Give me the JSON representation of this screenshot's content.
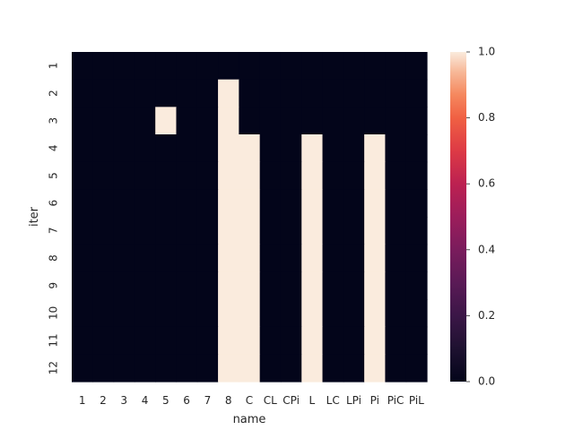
{
  "chart_data": {
    "type": "heatmap",
    "title": "",
    "xlabel": "name",
    "ylabel": "iter",
    "x_categories": [
      "1",
      "2",
      "3",
      "4",
      "5",
      "6",
      "7",
      "8",
      "C",
      "CL",
      "CPi",
      "L",
      "LC",
      "LPi",
      "Pi",
      "PiC",
      "PiL"
    ],
    "y_categories": [
      "1",
      "2",
      "3",
      "4",
      "5",
      "6",
      "7",
      "8",
      "9",
      "10",
      "11",
      "12"
    ],
    "values": [
      [
        0,
        0,
        0,
        0,
        0,
        0,
        0,
        0,
        0,
        0,
        0,
        0,
        0,
        0,
        0,
        0,
        0
      ],
      [
        0,
        0,
        0,
        0,
        0,
        0,
        0,
        1,
        0,
        0,
        0,
        0,
        0,
        0,
        0,
        0,
        0
      ],
      [
        0,
        0,
        0,
        0,
        1,
        0,
        0,
        1,
        0,
        0,
        0,
        0,
        0,
        0,
        0,
        0,
        0
      ],
      [
        0,
        0,
        0,
        0,
        0,
        0,
        0,
        1,
        1,
        0,
        0,
        1,
        0,
        0,
        1,
        0,
        0
      ],
      [
        0,
        0,
        0,
        0,
        0,
        0,
        0,
        1,
        1,
        0,
        0,
        1,
        0,
        0,
        1,
        0,
        0
      ],
      [
        0,
        0,
        0,
        0,
        0,
        0,
        0,
        1,
        1,
        0,
        0,
        1,
        0,
        0,
        1,
        0,
        0
      ],
      [
        0,
        0,
        0,
        0,
        0,
        0,
        0,
        1,
        1,
        0,
        0,
        1,
        0,
        0,
        1,
        0,
        0
      ],
      [
        0,
        0,
        0,
        0,
        0,
        0,
        0,
        1,
        1,
        0,
        0,
        1,
        0,
        0,
        1,
        0,
        0
      ],
      [
        0,
        0,
        0,
        0,
        0,
        0,
        0,
        1,
        1,
        0,
        0,
        1,
        0,
        0,
        1,
        0,
        0
      ],
      [
        0,
        0,
        0,
        0,
        0,
        0,
        0,
        1,
        1,
        0,
        0,
        1,
        0,
        0,
        1,
        0,
        0
      ],
      [
        0,
        0,
        0,
        0,
        0,
        0,
        0,
        1,
        1,
        0,
        0,
        1,
        0,
        0,
        1,
        0,
        0
      ],
      [
        0,
        0,
        0,
        0,
        0,
        0,
        0,
        1,
        1,
        0,
        0,
        1,
        0,
        0,
        1,
        0,
        0
      ]
    ],
    "colorbar": {
      "range": [
        0.0,
        1.0
      ],
      "ticks": [
        0.0,
        0.2,
        0.4,
        0.6,
        0.8,
        1.0
      ],
      "tick_labels": [
        "0.0",
        "0.2",
        "0.4",
        "0.6",
        "0.8",
        "1.0"
      ],
      "colormap": "rocket",
      "low_color": "#03051a",
      "high_color": "#faebdd"
    },
    "grid": false,
    "legend": "colorbar-right"
  }
}
